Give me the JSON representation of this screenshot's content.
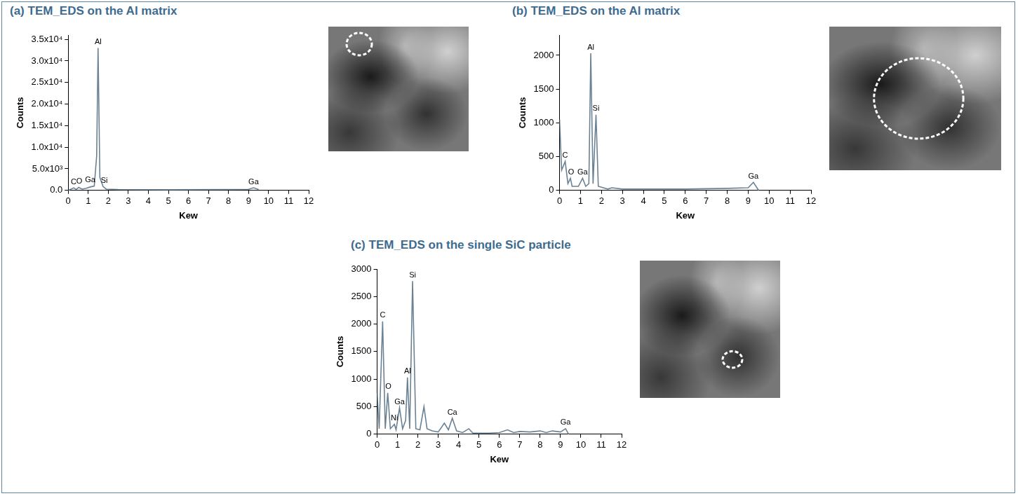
{
  "chart_data": [
    {
      "type": "line",
      "title": "(a) TEM_EDS on the Al matrix",
      "x_label": "Kew",
      "y_label": "Counts",
      "color": "#6b8294",
      "grid": false,
      "x": [
        0,
        0.28,
        0.4,
        0.52,
        0.7,
        0.9,
        1.1,
        1.3,
        1.42,
        1.49,
        1.58,
        1.74,
        1.9,
        2.5,
        5,
        8,
        9.0,
        9.25,
        9.5
      ],
      "values": [
        0,
        600,
        200,
        700,
        300,
        500,
        800,
        1000,
        8000,
        33000,
        3000,
        900,
        300,
        200,
        150,
        200,
        250,
        600,
        200
      ],
      "xlim": [
        0,
        12
      ],
      "xticks": [
        0,
        1,
        2,
        3,
        4,
        5,
        6,
        7,
        8,
        9,
        10,
        11,
        12
      ],
      "ylim": [
        0,
        36000
      ],
      "yticks": [
        {
          "value": 0,
          "label": "0.0"
        },
        {
          "value": 5000,
          "label": "5.0x10³"
        },
        {
          "value": 10000,
          "label": "1.0x10⁴"
        },
        {
          "value": 15000,
          "label": "1.5x10⁴"
        },
        {
          "value": 20000,
          "label": "2.0x10⁴"
        },
        {
          "value": 25000,
          "label": "2.5x10⁴"
        },
        {
          "value": 30000,
          "label": "3.0x10⁴"
        },
        {
          "value": 35000,
          "label": "3.5x10⁴"
        }
      ],
      "annotations": [
        {
          "text": "C",
          "x": 0.27,
          "y": 600
        },
        {
          "text": "O",
          "x": 0.55,
          "y": 700
        },
        {
          "text": "Ga",
          "x": 1.1,
          "y": 1000
        },
        {
          "text": "Al",
          "x": 1.49,
          "y": 33000
        },
        {
          "text": "Si",
          "x": 1.8,
          "y": 900
        },
        {
          "text": "Ga",
          "x": 9.25,
          "y": 600
        }
      ]
    },
    {
      "type": "line",
      "title": "(b) TEM_EDS on the Al matrix",
      "x_label": "Kew",
      "y_label": "Counts",
      "color": "#6b8294",
      "grid": false,
      "x": [
        0,
        0.1,
        0.27,
        0.4,
        0.52,
        0.6,
        0.9,
        1.1,
        1.25,
        1.4,
        1.49,
        1.6,
        1.74,
        1.85,
        2.3,
        2.5,
        3,
        6,
        8,
        9.0,
        9.25,
        9.5
      ],
      "values": [
        1050,
        300,
        430,
        100,
        180,
        60,
        60,
        180,
        60,
        100,
        2030,
        100,
        1120,
        60,
        20,
        40,
        20,
        20,
        30,
        40,
        120,
        0
      ],
      "xlim": [
        0,
        12
      ],
      "xticks": [
        0,
        1,
        2,
        3,
        4,
        5,
        6,
        7,
        8,
        9,
        10,
        11,
        12
      ],
      "ylim": [
        0,
        2300
      ],
      "yticks": [
        0,
        500,
        1000,
        1500,
        2000
      ],
      "annotations": [
        {
          "text": "C",
          "x": 0.27,
          "y": 430
        },
        {
          "text": "O",
          "x": 0.55,
          "y": 180
        },
        {
          "text": "Ga",
          "x": 1.1,
          "y": 180
        },
        {
          "text": "Al",
          "x": 1.49,
          "y": 2030
        },
        {
          "text": "Si",
          "x": 1.74,
          "y": 1120
        },
        {
          "text": "Ga",
          "x": 9.25,
          "y": 120
        }
      ]
    },
    {
      "type": "line",
      "title": "(c) TEM_EDS on the single SiC particle",
      "x_label": "Kew",
      "y_label": "Counts",
      "color": "#6b8294",
      "grid": false,
      "x": [
        0,
        0.1,
        0.27,
        0.4,
        0.52,
        0.65,
        0.85,
        0.93,
        1.1,
        1.25,
        1.4,
        1.49,
        1.6,
        1.74,
        1.9,
        2.1,
        2.3,
        2.45,
        2.7,
        3.0,
        3.3,
        3.5,
        3.69,
        3.9,
        4.2,
        4.5,
        4.7,
        5.5,
        6.0,
        6.4,
        6.7,
        7.0,
        7.5,
        8.0,
        8.3,
        8.6,
        9.0,
        9.25,
        9.4
      ],
      "values": [
        750,
        100,
        2050,
        100,
        750,
        100,
        180,
        80,
        480,
        100,
        250,
        1030,
        100,
        2780,
        100,
        80,
        500,
        100,
        60,
        40,
        200,
        80,
        290,
        60,
        30,
        100,
        20,
        20,
        30,
        80,
        30,
        50,
        40,
        60,
        30,
        60,
        40,
        100,
        0
      ],
      "xlim": [
        0,
        12
      ],
      "xticks": [
        0,
        1,
        2,
        3,
        4,
        5,
        6,
        7,
        8,
        9,
        10,
        11,
        12
      ],
      "ylim": [
        0,
        3000
      ],
      "yticks": [
        0,
        500,
        1000,
        1500,
        2000,
        2500,
        3000
      ],
      "annotations": [
        {
          "text": "C",
          "x": 0.27,
          "y": 2050
        },
        {
          "text": "O",
          "x": 0.55,
          "y": 750
        },
        {
          "text": "Ni",
          "x": 0.85,
          "y": 180
        },
        {
          "text": "Ga",
          "x": 1.1,
          "y": 480
        },
        {
          "text": "Al",
          "x": 1.49,
          "y": 1030
        },
        {
          "text": "Si",
          "x": 1.74,
          "y": 2780
        },
        {
          "text": "Ca",
          "x": 3.69,
          "y": 290
        },
        {
          "text": "Ga",
          "x": 9.25,
          "y": 100
        }
      ]
    }
  ]
}
